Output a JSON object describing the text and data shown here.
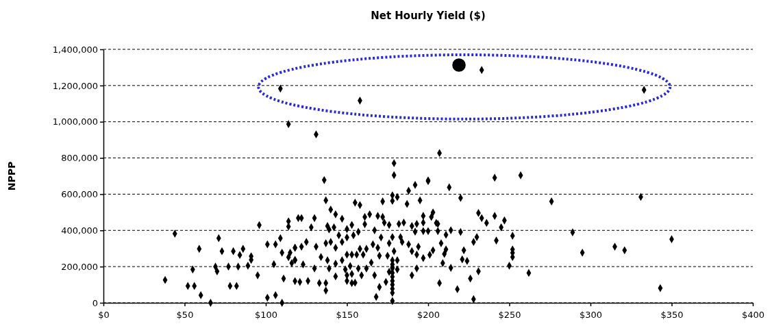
{
  "chart_data": {
    "type": "scatter",
    "title": "Net Hourly Yield ($)",
    "ylabel": "NPPP",
    "grid": "y",
    "xlim": [
      0,
      400
    ],
    "xticks": [
      {
        "value": 0,
        "label": "$0"
      },
      {
        "value": 50,
        "label": "$50"
      },
      {
        "value": 100,
        "label": "$100"
      },
      {
        "value": 150,
        "label": "$150"
      },
      {
        "value": 200,
        "label": "$200"
      },
      {
        "value": 250,
        "label": "$250"
      },
      {
        "value": 300,
        "label": "$300"
      },
      {
        "value": 350,
        "label": "$350"
      },
      {
        "value": 400,
        "label": "$400"
      }
    ],
    "ylim": [
      0,
      1400000
    ],
    "yticks": [
      {
        "value": 0,
        "label": "0"
      },
      {
        "value": 200000,
        "label": "200,000"
      },
      {
        "value": 400000,
        "label": "400,000"
      },
      {
        "value": 600000,
        "label": "600,000"
      },
      {
        "value": 800000,
        "label": "800,000"
      },
      {
        "value": 1000000,
        "label": "1,000,000"
      },
      {
        "value": 1200000,
        "label": "1,200,000"
      },
      {
        "value": 1400000,
        "label": "1,400,000"
      }
    ],
    "series": [
      {
        "color": "#000000",
        "marker": "diamond",
        "x": [
          38,
          44,
          52,
          56,
          55,
          59,
          60,
          66,
          69,
          70,
          71,
          73,
          77,
          78,
          82,
          80,
          83,
          84,
          86,
          89,
          91,
          91,
          95,
          96,
          101,
          101,
          105,
          106,
          106,
          109,
          110,
          110,
          111,
          114,
          114,
          115,
          114,
          116,
          118,
          118,
          118,
          120,
          179,
          179,
          136,
          192,
          200,
          188,
          137,
          172,
          178,
          181,
          178,
          187,
          195,
          155,
          158,
          140,
          143,
          147,
          122,
          130,
          128,
          138,
          142,
          150,
          153,
          161,
          164,
          161,
          169,
          172,
          173,
          176,
          182,
          185,
          190,
          193,
          197,
          197,
          197,
          192,
          183,
          178,
          171,
          167,
          157,
          154,
          150,
          145,
          139,
          137,
          140,
          143,
          147,
          131,
          125,
          122,
          118,
          118,
          123,
          130,
          134,
          138,
          139,
          143,
          143,
          147,
          150,
          149,
          152,
          153,
          156,
          160,
          162,
          158,
          166,
          169,
          170,
          165,
          162,
          159,
          157,
          153,
          150,
          153,
          155,
          150,
          137,
          137,
          133,
          126,
          121,
          167,
          170,
          168,
          174,
          176,
          175,
          178,
          178,
          178,
          178,
          178,
          178,
          178,
          178,
          178,
          178,
          178,
          181,
          181,
          184,
          188,
          190,
          193,
          194,
          197,
          190,
          193,
          179,
          176,
          207,
          200,
          213,
          220,
          241,
          257,
          276,
          331,
          289,
          295,
          315,
          321,
          350,
          343,
          262,
          250,
          252,
          252,
          252,
          252,
          242,
          245,
          247,
          241,
          236,
          233,
          231,
          230,
          228,
          222,
          221,
          224,
          226,
          231,
          228,
          218,
          207,
          214,
          209,
          210,
          211,
          208,
          201,
          203,
          211,
          214,
          220,
          206,
          200,
          205,
          206,
          202,
          203,
          109,
          158,
          233,
          333,
          114,
          131
        ],
        "values": [
          126000,
          382000,
          93000,
          93000,
          184000,
          298000,
          42000,
          0,
          200000,
          174000,
          357000,
          285000,
          200000,
          93000,
          93000,
          285000,
          200000,
          264000,
          298000,
          205000,
          257000,
          237000,
          152000,
          429000,
          323000,
          28000,
          213000,
          42000,
          323000,
          357000,
          277000,
          0,
          134000,
          450000,
          421000,
          277000,
          252000,
          219000,
          237000,
          120000,
          304000,
          468000,
          771000,
          705000,
          678000,
          651000,
          676000,
          619000,
          566000,
          560000,
          594000,
          584000,
          563000,
          546000,
          566000,
          553000,
          540000,
          515000,
          489000,
          464000,
          468000,
          468000,
          417000,
          424000,
          417000,
          407000,
          430000,
          474000,
          489000,
          434000,
          480000,
          474000,
          443000,
          430000,
          436000,
          443000,
          424000,
          436000,
          443000,
          480000,
          396000,
          393000,
          363000,
          363000,
          361000,
          401000,
          392000,
          373000,
          361000,
          373000,
          405000,
          329000,
          336000,
          304000,
          336000,
          310000,
          336000,
          310000,
          304000,
          235000,
          212000,
          190000,
          253000,
          235000,
          190000,
          146000,
          216000,
          235000,
          266000,
          184000,
          203000,
          266000,
          266000,
          266000,
          298000,
          298000,
          323000,
          304000,
          260000,
          222000,
          190000,
          152000,
          190000,
          159000,
          121000,
          109000,
          111000,
          152000,
          109000,
          68000,
          109000,
          121000,
          115000,
          152000,
          87000,
          33000,
          115000,
          171000,
          260000,
          197000,
          235000,
          212000,
          190000,
          166000,
          144000,
          121000,
          100000,
          78000,
          55000,
          10000,
          235000,
          184000,
          336000,
          323000,
          285000,
          266000,
          310000,
          247000,
          152000,
          190000,
          285000,
          329000,
          827000,
          672000,
          638000,
          579000,
          691000,
          704000,
          560000,
          585000,
          389000,
          277000,
          310000,
          290000,
          351000,
          81000,
          165000,
          205000,
          370000,
          295000,
          276000,
          253000,
          344000,
          417000,
          455000,
          480000,
          441000,
          468000,
          496000,
          363000,
          336000,
          290000,
          240000,
          231000,
          134000,
          174000,
          20000,
          75000,
          109000,
          193000,
          219000,
          270000,
          295000,
          329000,
          265000,
          290000,
          376000,
          401000,
          391000,
          396000,
          396000,
          441000,
          436000,
          474000,
          499000,
          1183000,
          1117000,
          1286000,
          1176000,
          987000,
          930000
        ]
      },
      {
        "color": "#000000",
        "marker": "circle",
        "x": [
          219
        ],
        "values": [
          1313000
        ]
      }
    ]
  }
}
